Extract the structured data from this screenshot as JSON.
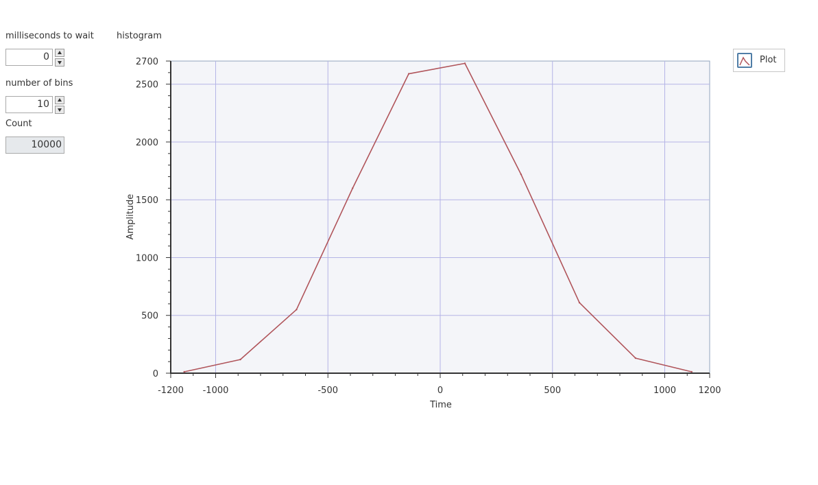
{
  "controls": {
    "wait_label": "milliseconds to wait",
    "wait_value": "0",
    "bins_label": "number of bins",
    "bins_value": "10",
    "count_label": "Count",
    "count_value": "10000"
  },
  "colors": {
    "plot_background": "#f4f5f9",
    "grid": "#b4b4e6",
    "line": "#b0545a",
    "axis": "#333333"
  },
  "chart_data": {
    "type": "line",
    "title": "histogram",
    "xlabel": "Time",
    "ylabel": "Amplitude",
    "xlim": [
      -1200,
      1200
    ],
    "ylim": [
      0,
      2700
    ],
    "x_ticks": [
      -1200,
      -1000,
      -500,
      0,
      500,
      1000,
      1200
    ],
    "y_ticks": [
      0,
      500,
      1000,
      1500,
      2000,
      2500,
      2700
    ],
    "x_grid": [
      -1000,
      -500,
      0,
      500,
      1000
    ],
    "y_grid": [
      500,
      1000,
      1500,
      2000,
      2500
    ],
    "x_minor_step": 100,
    "y_minor_step": 100,
    "grid": true,
    "legend_position": "top-right",
    "series": [
      {
        "name": "Plot",
        "x": [
          -1140,
          -890,
          -640,
          -390,
          -140,
          110,
          360,
          620,
          870,
          1120
        ],
        "y": [
          12,
          118,
          550,
          1600,
          2590,
          2680,
          1720,
          610,
          130,
          12
        ]
      }
    ]
  }
}
